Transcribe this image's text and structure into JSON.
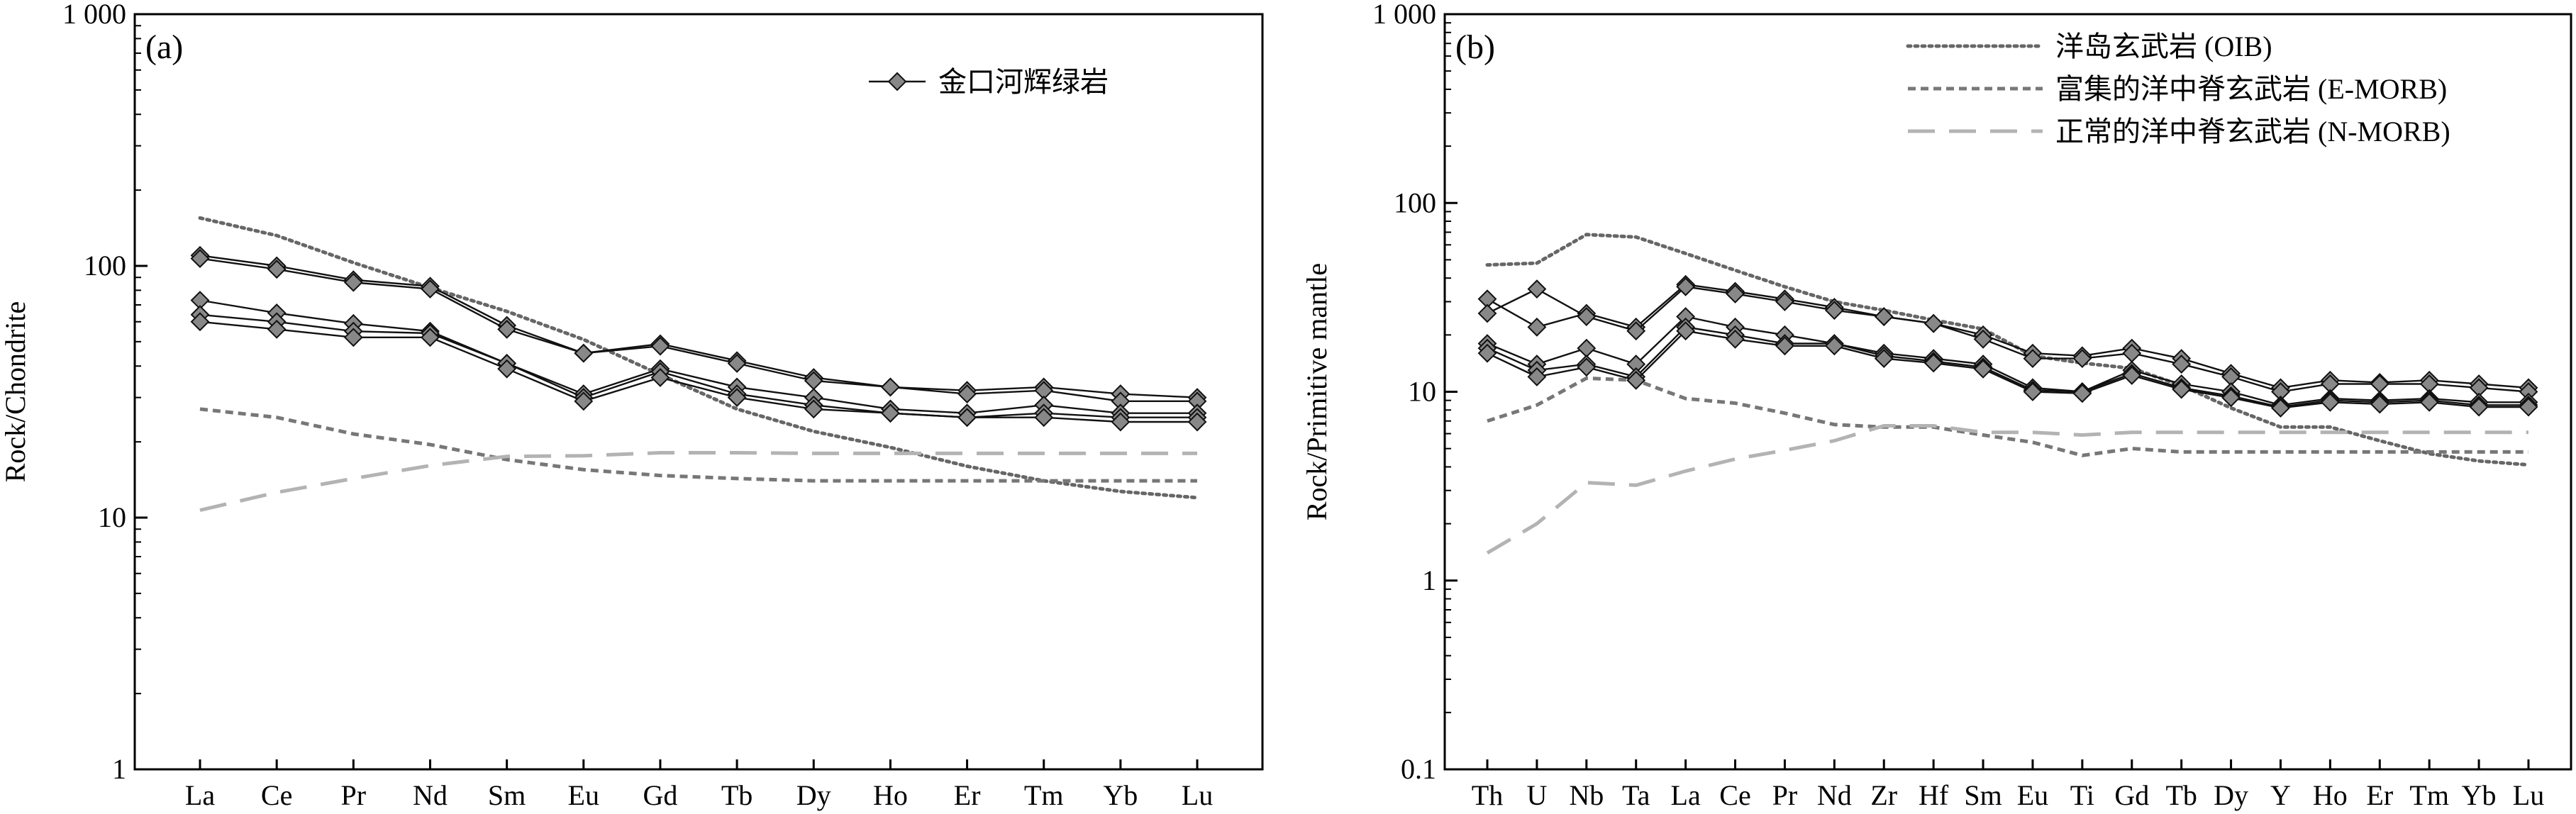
{
  "colors": {
    "sample_marker_fill": "#888888",
    "sample_line": "#111111",
    "oib": "#666666",
    "e_morb": "#777777",
    "n_morb": "#b3b3b3"
  },
  "chart_data": [
    {
      "type": "line",
      "panel_label": "(a)",
      "xlabel": "",
      "ylabel": "Rock/Chondrite",
      "yscale": "log",
      "ylim": [
        1,
        1000
      ],
      "ytick_labels": [
        "1",
        "10",
        "100",
        "1 000"
      ],
      "categories": [
        "La",
        "Ce",
        "Pr",
        "Nd",
        "Sm",
        "Eu",
        "Gd",
        "Tb",
        "Dy",
        "Ho",
        "Er",
        "Tm",
        "Yb",
        "Lu"
      ],
      "legend_position": "top-right",
      "legend": [
        {
          "label": "金口河辉绿岩",
          "style": "sample"
        }
      ],
      "reference_series": [
        {
          "key": "oib",
          "style": "dotted",
          "values": [
            155,
            132,
            103,
            82,
            66,
            51,
            37,
            27,
            22,
            19,
            16,
            14,
            12.7,
            12
          ]
        },
        {
          "key": "e_morb",
          "style": "dashed",
          "values": [
            27,
            25,
            21.5,
            19.5,
            17,
            15.5,
            14.7,
            14.3,
            14,
            14,
            14,
            14,
            14,
            14
          ]
        },
        {
          "key": "n_morb",
          "style": "long-dashed",
          "values": [
            10.7,
            12.6,
            14.3,
            16.1,
            17.5,
            17.6,
            18.1,
            18.1,
            18,
            18,
            18,
            18,
            18,
            18
          ]
        }
      ],
      "samples": [
        {
          "values": [
            110,
            100,
            88,
            83,
            58,
            45,
            49,
            42,
            36,
            33,
            32,
            33,
            31,
            30
          ]
        },
        {
          "values": [
            107,
            97,
            86,
            81,
            56,
            45,
            48,
            41,
            35,
            33,
            31,
            32,
            29,
            29
          ]
        },
        {
          "values": [
            73,
            65,
            59,
            55,
            41,
            31,
            39,
            33,
            30,
            27,
            26,
            28,
            26,
            26
          ]
        },
        {
          "values": [
            64,
            60,
            55,
            54,
            41,
            30,
            38,
            31,
            28,
            26,
            25,
            26,
            25,
            25
          ]
        },
        {
          "values": [
            60,
            56,
            52,
            52,
            39,
            29,
            36,
            30,
            27,
            26,
            25,
            25,
            24,
            24
          ]
        }
      ]
    },
    {
      "type": "line",
      "panel_label": "(b)",
      "xlabel": "",
      "ylabel": "Rock/Primitive mantle",
      "yscale": "log",
      "ylim": [
        0.1,
        1000
      ],
      "ytick_labels": [
        "0.1",
        "1",
        "10",
        "100",
        "1 000"
      ],
      "categories": [
        "Th",
        "U",
        "Nb",
        "Ta",
        "La",
        "Ce",
        "Pr",
        "Nd",
        "Zr",
        "Hf",
        "Sm",
        "Eu",
        "Ti",
        "Gd",
        "Tb",
        "Dy",
        "Y",
        "Ho",
        "Er",
        "Tm",
        "Yb",
        "Lu"
      ],
      "legend_position": "top-right",
      "legend": [
        {
          "label": "洋岛玄武岩 (OIB)",
          "style": "dotted",
          "key": "oib"
        },
        {
          "label": "富集的洋中脊玄武岩 (E-MORB)",
          "style": "dashed",
          "key": "e_morb"
        },
        {
          "label": "正常的洋中脊玄武岩 (N-MORB)",
          "style": "long-dashed",
          "key": "n_morb"
        }
      ],
      "reference_series": [
        {
          "key": "oib",
          "style": "dotted",
          "values": [
            47,
            48,
            68,
            66,
            54,
            44,
            36,
            30,
            27,
            24,
            21.5,
            15.5,
            14.2,
            13.3,
            10.8,
            8.2,
            6.5,
            6.5,
            5.5,
            4.7,
            4.3,
            4.1
          ]
        },
        {
          "key": "e_morb",
          "style": "dashed",
          "values": [
            7.0,
            8.5,
            11.8,
            11.5,
            9.2,
            8.7,
            7.7,
            6.7,
            6.5,
            6.5,
            5.9,
            5.4,
            4.6,
            5.0,
            4.8,
            4.8,
            4.8,
            4.8,
            4.8,
            4.8,
            4.8,
            4.8
          ]
        },
        {
          "key": "n_morb",
          "style": "long-dashed",
          "values": [
            1.4,
            2.0,
            3.3,
            3.2,
            3.8,
            4.4,
            4.9,
            5.5,
            6.6,
            6.6,
            6.1,
            6.1,
            5.9,
            6.1,
            6.1,
            6.1,
            6.1,
            6.1,
            6.1,
            6.1,
            6.1,
            6.1
          ]
        }
      ],
      "samples": [
        {
          "values": [
            31,
            22,
            26,
            22,
            37,
            34,
            31,
            28,
            25,
            23,
            20,
            16,
            15.5,
            17,
            15,
            12.5,
            10.5,
            11.5,
            11.2,
            11.5,
            11,
            10.5
          ]
        },
        {
          "values": [
            26,
            35,
            25,
            21,
            36,
            33,
            30,
            27,
            25,
            23,
            19,
            15,
            15,
            16,
            14,
            12,
            10,
            11,
            11,
            11,
            10.5,
            10
          ]
        },
        {
          "values": [
            18,
            14,
            17,
            14,
            25,
            22,
            20,
            18,
            16,
            15,
            14,
            10.5,
            10,
            13,
            11,
            10,
            8.5,
            9.2,
            9,
            9.2,
            8.8,
            8.8
          ]
        },
        {
          "values": [
            17,
            13,
            14,
            12,
            22,
            20,
            18,
            18,
            15.5,
            14.5,
            13.5,
            10.2,
            10,
            12.5,
            10.5,
            9.5,
            8.3,
            9,
            8.8,
            9,
            8.5,
            8.5
          ]
        },
        {
          "values": [
            16,
            12,
            13.5,
            11.5,
            21,
            19,
            17.5,
            17.5,
            15,
            14.2,
            13.2,
            10,
            9.8,
            12.2,
            10.3,
            9.3,
            8.2,
            8.8,
            8.6,
            8.8,
            8.3,
            8.3
          ]
        }
      ]
    }
  ]
}
